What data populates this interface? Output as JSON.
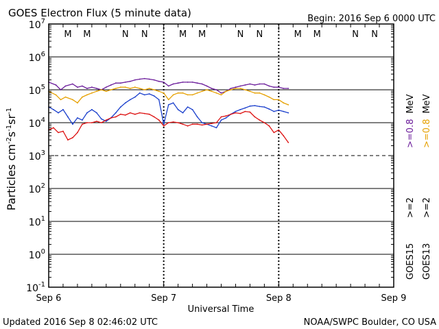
{
  "chart_data": {
    "type": "line",
    "title": "GOES Electron Flux (5 minute data)",
    "begin_label": "Begin: 2016 Sep 6 0000 UTC",
    "xlabel": "Universal Time",
    "ylabel": {
      "prefix": "Particles cm",
      "exp1": "-2",
      "mid1": "s",
      "exp2": "-1",
      "mid2": "sr",
      "exp3": "-1"
    },
    "x_ticks": [
      {
        "value": 0,
        "label": "Sep 6"
      },
      {
        "value": 24,
        "label": "Sep 7"
      },
      {
        "value": 48,
        "label": "Sep 8"
      },
      {
        "value": 72,
        "label": "Sep 9"
      }
    ],
    "xlim": [
      0,
      72
    ],
    "y_scale": "log",
    "ylim_exp": [
      -1,
      7
    ],
    "y_ticks": [
      {
        "exp": 7,
        "label": "7"
      },
      {
        "exp": 6,
        "label": "6"
      },
      {
        "exp": 5,
        "label": "5"
      },
      {
        "exp": 4,
        "label": "4"
      },
      {
        "exp": 3,
        "label": "3"
      },
      {
        "exp": 2,
        "label": "2"
      },
      {
        "exp": 1,
        "label": "1"
      },
      {
        "exp": 0,
        "label": "0"
      },
      {
        "exp": -1,
        "label": "-1"
      }
    ],
    "tick_base": "10",
    "solid_gridlines_exp": [
      6,
      5,
      4,
      2,
      1,
      0
    ],
    "dashed_gridline_exp": 3,
    "markers": [
      {
        "label": "M",
        "hour": 4,
        "color": "#cc0000"
      },
      {
        "label": "M",
        "hour": 8,
        "color": "#1a1acc"
      },
      {
        "label": "N",
        "hour": 16,
        "color": "#cc0000"
      },
      {
        "label": "N",
        "hour": 20,
        "color": "#1a1acc"
      },
      {
        "label": "M",
        "hour": 28,
        "color": "#cc0000"
      },
      {
        "label": "M",
        "hour": 32,
        "color": "#1a1acc"
      },
      {
        "label": "N",
        "hour": 40,
        "color": "#cc0000"
      },
      {
        "label": "N",
        "hour": 44,
        "color": "#1a1acc"
      },
      {
        "label": "M",
        "hour": 52,
        "color": "#cc0000"
      },
      {
        "label": "M",
        "hour": 56,
        "color": "#1a1acc"
      },
      {
        "label": "N",
        "hour": 64,
        "color": "#cc0000"
      },
      {
        "label": "N",
        "hour": 68,
        "color": "#1a1acc"
      }
    ],
    "series": [
      {
        "name": "GOES15 >=0.8 MeV",
        "color": "#6a1b9a",
        "x": [
          0,
          1.5,
          2.5,
          3.5,
          5,
          6,
          7,
          8,
          9,
          10,
          11,
          12,
          13,
          14,
          15,
          16,
          17,
          18,
          19,
          20,
          21,
          22,
          23,
          24,
          25,
          26,
          27,
          28,
          29,
          30,
          31,
          32,
          33,
          34,
          35,
          36,
          37,
          38,
          39,
          40,
          41,
          42,
          43,
          44,
          45,
          46,
          47,
          48,
          49,
          50
        ],
        "y": [
          170000,
          140000,
          100000,
          130000,
          150000,
          120000,
          130000,
          110000,
          120000,
          110000,
          100000,
          120000,
          140000,
          160000,
          160000,
          170000,
          180000,
          200000,
          210000,
          220000,
          210000,
          200000,
          180000,
          170000,
          130000,
          150000,
          160000,
          170000,
          170000,
          170000,
          160000,
          150000,
          130000,
          110000,
          100000,
          80000,
          90000,
          110000,
          120000,
          130000,
          140000,
          150000,
          140000,
          150000,
          150000,
          130000,
          120000,
          120000,
          110000,
          110000
        ]
      },
      {
        "name": "GOES13 >=0.8 MeV",
        "color": "#e6a000",
        "x": [
          0,
          1.5,
          2.5,
          3.5,
          5,
          6,
          7,
          8,
          9,
          10,
          11,
          12,
          13,
          14,
          15,
          16,
          17,
          18,
          19,
          20,
          21,
          22,
          23,
          24,
          25,
          26,
          27,
          28,
          29,
          30,
          31,
          32,
          33,
          34,
          35,
          36,
          37,
          38,
          39,
          40,
          41,
          42,
          43,
          44,
          45,
          46,
          47,
          48,
          49,
          50
        ],
        "y": [
          90000,
          70000,
          50000,
          60000,
          50000,
          40000,
          60000,
          70000,
          80000,
          90000,
          100000,
          90000,
          100000,
          110000,
          120000,
          120000,
          110000,
          120000,
          110000,
          100000,
          110000,
          100000,
          90000,
          80000,
          50000,
          70000,
          80000,
          80000,
          70000,
          70000,
          80000,
          90000,
          100000,
          90000,
          80000,
          70000,
          90000,
          100000,
          110000,
          110000,
          100000,
          90000,
          80000,
          80000,
          70000,
          60000,
          50000,
          50000,
          40000,
          35000
        ]
      },
      {
        "name": "GOES15 >=2 MeV",
        "color": "#1a3fcc",
        "x": [
          0,
          1,
          2,
          3,
          4,
          5,
          6,
          7,
          8,
          9,
          10,
          11,
          12,
          13,
          14,
          15,
          16,
          17,
          18,
          19,
          20,
          21,
          22,
          23,
          24,
          25,
          26,
          27,
          28,
          29,
          30,
          31,
          32,
          33,
          34,
          35,
          36,
          37,
          38,
          39,
          40,
          41,
          42,
          43,
          44,
          45,
          46,
          47,
          48,
          49,
          50
        ],
        "y": [
          30000,
          25000,
          20000,
          25000,
          15000,
          9000,
          14000,
          12000,
          20000,
          25000,
          20000,
          13000,
          11000,
          14000,
          20000,
          30000,
          40000,
          50000,
          60000,
          80000,
          70000,
          75000,
          65000,
          50000,
          9000,
          35000,
          40000,
          25000,
          20000,
          30000,
          25000,
          15000,
          10000,
          9000,
          8000,
          7000,
          12000,
          14000,
          18000,
          22000,
          25000,
          28000,
          32000,
          33000,
          31000,
          30000,
          26000,
          22000,
          24000,
          22000,
          20000
        ]
      },
      {
        "name": "GOES13 >=2 MeV",
        "color": "#dd1111",
        "x": [
          0,
          1,
          2,
          3,
          4,
          5,
          6,
          7,
          8,
          9,
          10,
          11,
          12,
          13,
          14,
          15,
          16,
          17,
          18,
          19,
          20,
          21,
          22,
          23,
          24,
          25,
          26,
          27,
          28,
          29,
          30,
          31,
          32,
          33,
          34,
          35,
          36,
          37,
          38,
          39,
          40,
          41,
          42,
          43,
          44,
          45,
          46,
          47,
          48,
          49,
          50
        ],
        "y": [
          6000,
          7000,
          5000,
          5500,
          3000,
          3500,
          5000,
          9000,
          10000,
          10000,
          11000,
          10000,
          12000,
          14000,
          15000,
          18000,
          17000,
          20000,
          18000,
          20000,
          19000,
          18000,
          15000,
          12000,
          8000,
          10000,
          10500,
          10000,
          9000,
          8000,
          9000,
          9000,
          8500,
          9000,
          9500,
          10000,
          15000,
          16000,
          18000,
          20000,
          19000,
          22000,
          21000,
          15000,
          12000,
          10000,
          8000,
          5000,
          6000,
          4000,
          2500
        ]
      }
    ],
    "legend": {
      "upper": [
        {
          "prefix": ">=0.8",
          "suffix": "MeV",
          "color": "#6a1b9a"
        },
        {
          "prefix": ">=0.8",
          "suffix": "MeV",
          "color": "#e6a000"
        }
      ],
      "lower": [
        {
          "prefix": ">=2",
          "color": "#1a3fcc"
        },
        {
          "prefix": ">=2",
          "color": "#dd1111"
        }
      ],
      "satellites": [
        "GOES15",
        "GOES13"
      ]
    },
    "footer_left": "Updated 2016 Sep  8 02:46:02 UTC",
    "footer_right": "NOAA/SWPC Boulder, CO USA"
  }
}
